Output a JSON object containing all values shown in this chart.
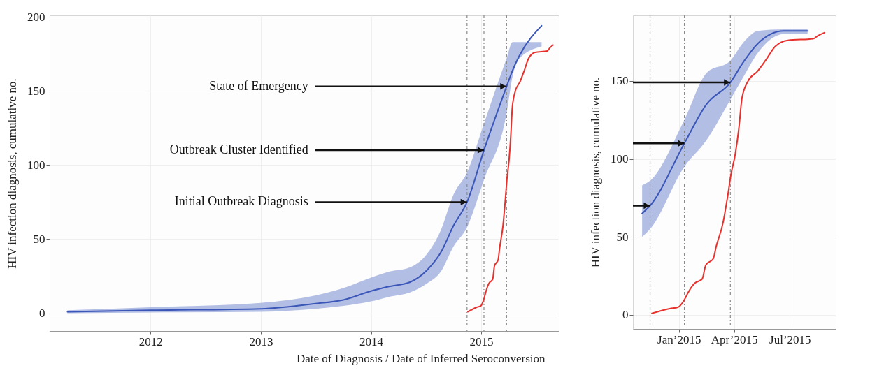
{
  "chart_data": [
    {
      "type": "line",
      "xlabel": "Date of Diagnosis / Date of Inferred Seroconversion",
      "ylabel": "HIV infection diagnosis, cumulative no.",
      "xlim": [
        "2011-02-01",
        "2015-09-15"
      ],
      "xticks": [
        {
          "value": "2012-01-01",
          "label": "2012"
        },
        {
          "value": "2013-01-01",
          "label": "2013"
        },
        {
          "value": "2014-01-01",
          "label": "2014"
        },
        {
          "value": "2015-01-01",
          "label": "2015"
        }
      ],
      "ylim": [
        -12,
        201
      ],
      "yticks": [
        0,
        50,
        100,
        150,
        200
      ],
      "grid": true,
      "ref_lines": [
        {
          "axis": "x",
          "value": "2014-11-15",
          "line_style": "dashed",
          "color": "#8a8a8a"
        },
        {
          "axis": "x",
          "value": "2015-01-10",
          "line_style": "dashed",
          "color": "#8a8a8a"
        },
        {
          "axis": "x",
          "value": "2015-03-26",
          "line_style": "dashed",
          "color": "#8a8a8a"
        }
      ],
      "annotations": [
        {
          "text": "State of Emergency",
          "x": "2015-03-26",
          "y": 153
        },
        {
          "text": "Outbreak Cluster Identified",
          "x": "2015-01-10",
          "y": 110
        },
        {
          "text": "Initial Outbreak Diagnosis",
          "x": "2014-11-15",
          "y": 75
        }
      ],
      "series": [
        {
          "type": "line",
          "color": "#3a56b8",
          "x": [
            "2011-04-01",
            "2012-01-01",
            "2013-01-01",
            "2013-07-01",
            "2013-10-01",
            "2014-01-01",
            "2014-03-01",
            "2014-05-10",
            "2014-07-05",
            "2014-08-20",
            "2014-10-01",
            "2014-11-15",
            "2015-01-10",
            "2015-03-26",
            "2015-04-15",
            "2015-05-08",
            "2015-07-20"
          ],
          "values": [
            1,
            2,
            3,
            6.5,
            9,
            15,
            18,
            21,
            29,
            41,
            59,
            75,
            110,
            153,
            164,
            174,
            194
          ],
          "lower": [
            0,
            0.5,
            1,
            3,
            5,
            8,
            11,
            14,
            20,
            28,
            45,
            58,
            90,
            135,
            160,
            172,
            180
          ],
          "upper": [
            2,
            4,
            7,
            12,
            17,
            24,
            28,
            31,
            40,
            56,
            80,
            95,
            128,
            172,
            183,
            183,
            183
          ]
        },
        {
          "type": "line",
          "color": "#e8312c",
          "x": [
            "2014-11-18",
            "2014-12-17",
            "2014-12-31",
            "2015-01-09",
            "2015-01-17",
            "2015-01-26",
            "2015-02-08",
            "2015-02-14",
            "2015-02-26",
            "2015-03-03",
            "2015-03-14",
            "2015-03-22",
            "2015-03-27",
            "2015-04-03",
            "2015-04-09",
            "2015-04-14",
            "2015-04-24",
            "2015-05-09",
            "2015-05-24",
            "2015-06-07",
            "2015-06-28",
            "2015-08-08",
            "2015-08-16",
            "2015-08-27"
          ],
          "values": [
            1,
            4,
            5,
            9,
            15,
            20,
            23,
            32,
            36,
            44,
            59,
            77,
            90,
            103,
            120,
            139,
            150,
            156,
            164,
            172,
            176,
            177,
            179,
            181
          ]
        }
      ]
    },
    {
      "type": "line",
      "ylabel": "HIV infection diagnosis, cumulative no.",
      "xlim": [
        "2014-10-18",
        "2015-09-14"
      ],
      "xticks": [
        {
          "value": "2015-01-01",
          "label": "Jan’2015"
        },
        {
          "value": "2015-04-01",
          "label": "Apr’2015"
        },
        {
          "value": "2015-07-01",
          "label": "Jul’2015"
        }
      ],
      "ylim": [
        -9,
        192
      ],
      "yticks": [
        0,
        50,
        100,
        150
      ],
      "grid": true,
      "ref_lines": [
        {
          "axis": "x",
          "value": "2014-11-15",
          "line_style": "dashed",
          "color": "#8a8a8a"
        },
        {
          "axis": "x",
          "value": "2015-01-10",
          "line_style": "dashed",
          "color": "#8a8a8a"
        },
        {
          "axis": "x",
          "value": "2015-03-26",
          "line_style": "dashed",
          "color": "#8a8a8a"
        }
      ],
      "series": [
        {
          "type": "line",
          "color": "#3a56b8",
          "x": [
            "2014-11-02",
            "2014-11-15",
            "2015-01-10",
            "2015-02-15",
            "2015-03-26",
            "2015-04-17",
            "2015-05-10",
            "2015-06-21",
            "2015-07-30"
          ],
          "values": [
            65,
            70,
            110,
            135,
            149,
            162.5,
            174,
            182,
            182
          ],
          "lower": [
            50,
            55,
            95,
            112,
            138,
            153,
            168,
            180,
            180
          ],
          "upper": [
            83,
            86,
            125,
            155,
            163,
            175,
            182,
            183,
            183
          ]
        },
        {
          "type": "line",
          "color": "#e8312c",
          "x": [
            "2014-11-18",
            "2014-12-17",
            "2014-12-31",
            "2015-01-09",
            "2015-01-17",
            "2015-01-26",
            "2015-02-08",
            "2015-02-14",
            "2015-02-26",
            "2015-03-03",
            "2015-03-14",
            "2015-03-22",
            "2015-03-27",
            "2015-04-03",
            "2015-04-09",
            "2015-04-14",
            "2015-04-24",
            "2015-05-09",
            "2015-05-24",
            "2015-06-07",
            "2015-06-28",
            "2015-08-08",
            "2015-08-16",
            "2015-08-27"
          ],
          "values": [
            1,
            4,
            5,
            9,
            15,
            20,
            23,
            32,
            36,
            44,
            59,
            77,
            90,
            103,
            120,
            139,
            150,
            156,
            164,
            172,
            176,
            177,
            179,
            181
          ]
        }
      ]
    }
  ]
}
